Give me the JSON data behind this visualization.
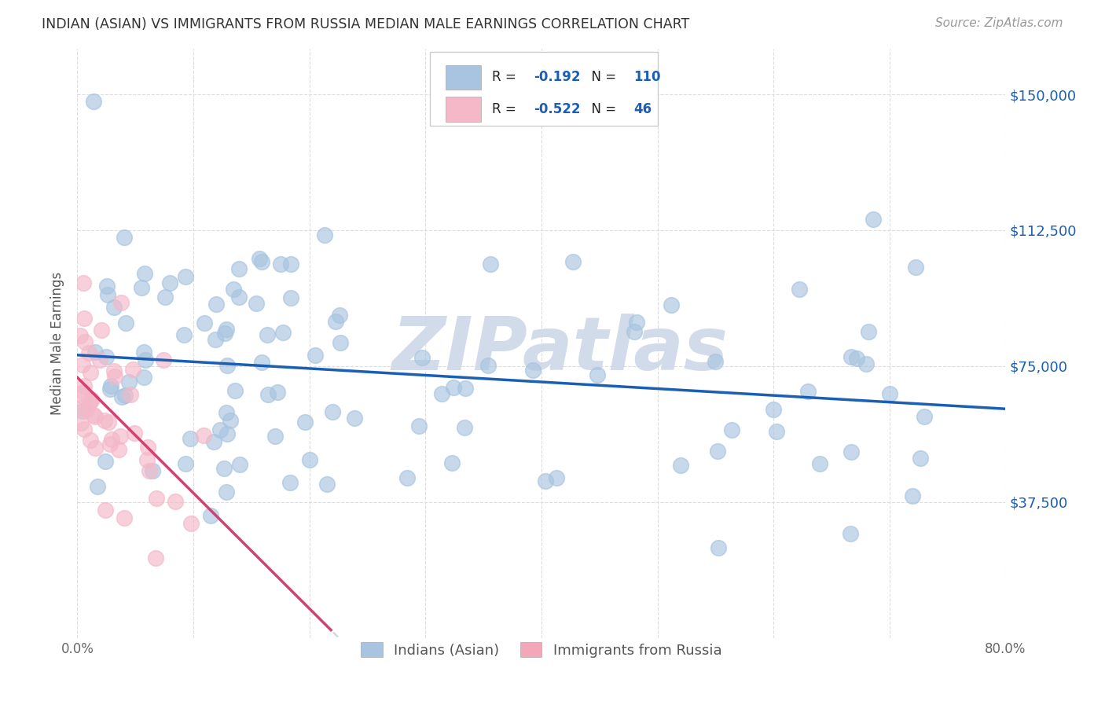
{
  "title": "INDIAN (ASIAN) VS IMMIGRANTS FROM RUSSIA MEDIAN MALE EARNINGS CORRELATION CHART",
  "source": "Source: ZipAtlas.com",
  "ylabel": "Median Male Earnings",
  "xlim": [
    0.0,
    0.8
  ],
  "ylim": [
    0,
    162500
  ],
  "ytick_positions": [
    0,
    37500,
    75000,
    112500,
    150000
  ],
  "ytick_labels": [
    "",
    "$37,500",
    "$75,000",
    "$112,500",
    "$150,000"
  ],
  "bottom_legend": [
    {
      "label": "Indians (Asian)",
      "color": "#a8c4e0"
    },
    {
      "label": "Immigrants from Russia",
      "color": "#f4a7b9"
    }
  ],
  "scatter_color_blue": "#a8c4e0",
  "scatter_color_pink": "#f4b8c8",
  "trend_color_blue": "#1a5fb4",
  "trend_color_pink": "#d44070",
  "trend_color_dashed": "#cccccc",
  "watermark_text": "ZIPatlas",
  "watermark_color": "#cdd8e8",
  "background_color": "#ffffff",
  "grid_color": "#dddddd",
  "title_color": "#333333",
  "source_color": "#999999",
  "axis_label_color": "#555555",
  "ytick_color_right": "#1a5fb4",
  "blue_R_val": "-0.192",
  "blue_N_val": "110",
  "pink_R_val": "-0.522",
  "pink_N_val": "46",
  "legend_text_color": "#1a5fb4",
  "blue_seed": 12,
  "pink_seed": 99
}
